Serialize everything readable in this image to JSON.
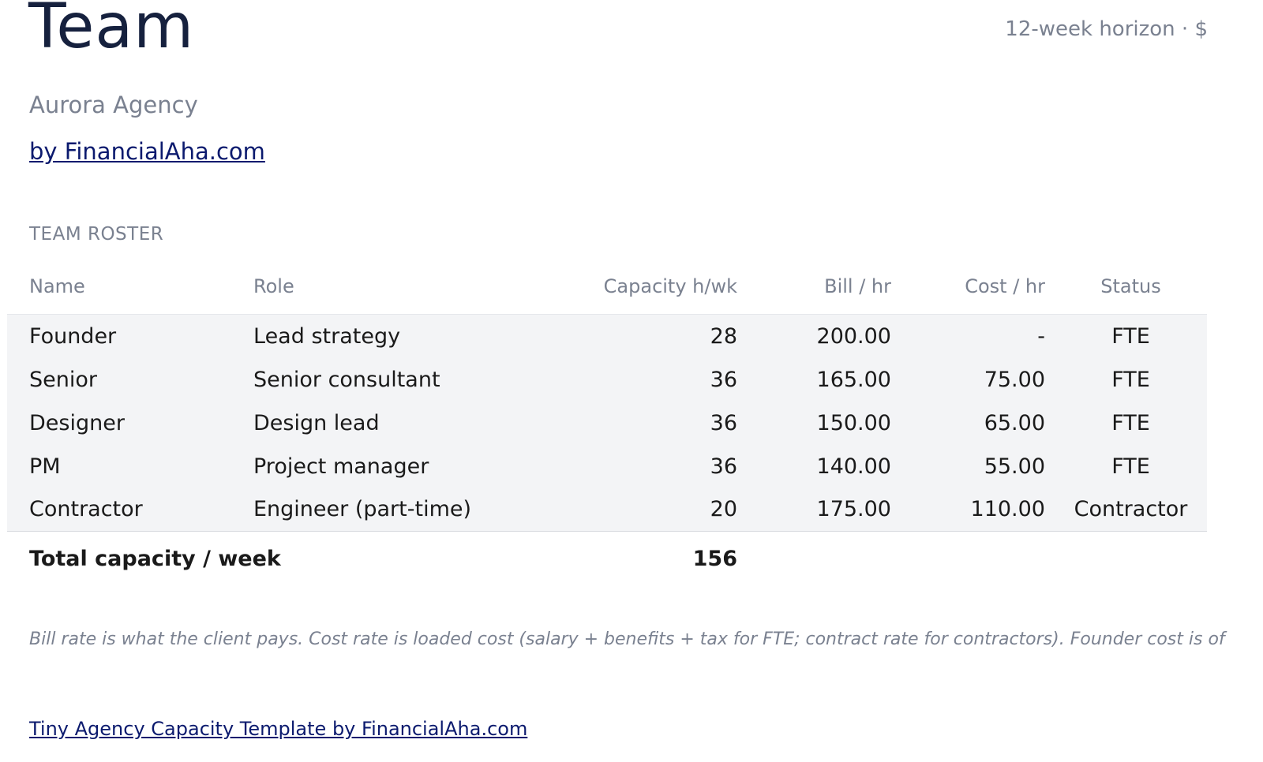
{
  "header": {
    "title": "Team",
    "horizon": "12-week horizon · $",
    "agency_name": "Aurora Agency",
    "by_link": "by FinancialAha.com"
  },
  "roster": {
    "section_label": "TEAM ROSTER",
    "columns": [
      "Name",
      "Role",
      "Capacity h/wk",
      "Bill / hr",
      "Cost / hr",
      "Status"
    ],
    "rows": [
      {
        "name": "Founder",
        "role": "Lead strategy",
        "capacity": "28",
        "bill": "200.00",
        "cost": "-",
        "status": "FTE"
      },
      {
        "name": "Senior",
        "role": "Senior consultant",
        "capacity": "36",
        "bill": "165.00",
        "cost": "75.00",
        "status": "FTE"
      },
      {
        "name": "Designer",
        "role": "Design lead",
        "capacity": "36",
        "bill": "150.00",
        "cost": "65.00",
        "status": "FTE"
      },
      {
        "name": "PM",
        "role": "Project manager",
        "capacity": "36",
        "bill": "140.00",
        "cost": "55.00",
        "status": "FTE"
      },
      {
        "name": "Contractor",
        "role": "Engineer (part-time)",
        "capacity": "20",
        "bill": "175.00",
        "cost": "110.00",
        "status": "Contractor"
      }
    ],
    "total_label": "Total capacity / week",
    "total_value": "156"
  },
  "footnote": "Bill rate is what the client pays. Cost rate is loaded cost (salary + benefits + tax for FTE; contract rate for contractors). Founder cost is of",
  "footer": {
    "link": "Tiny Agency Capacity Template by FinancialAha.com"
  },
  "colors": {
    "title": "#16213e",
    "muted": "#7a8190",
    "link": "#0b1a6e",
    "row_background": "#f3f4f6"
  }
}
